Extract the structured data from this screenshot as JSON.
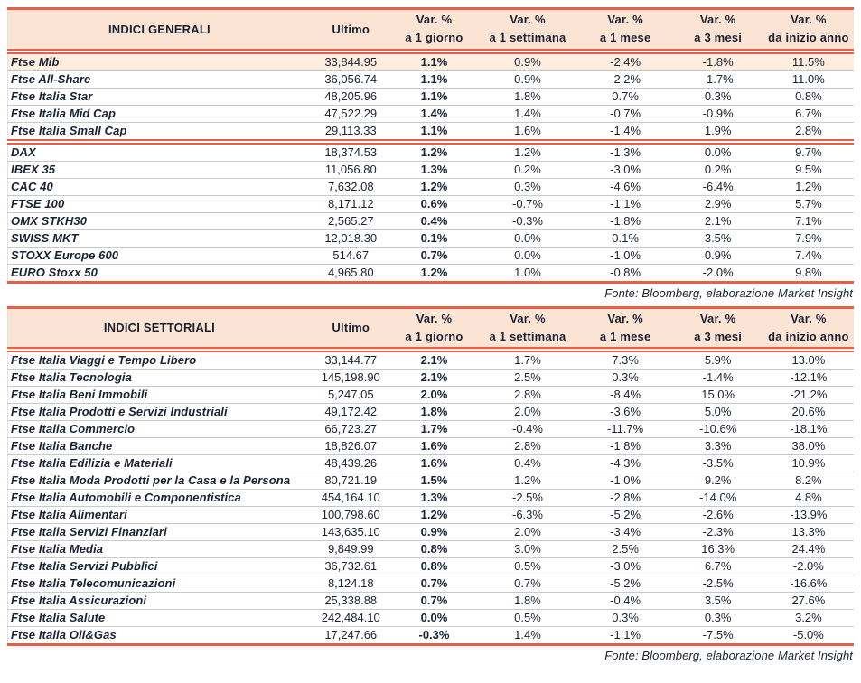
{
  "colors": {
    "accent_line": "#EA5E46",
    "header_bg": "#FBE4D3",
    "highlight_row_bg": "#FCEDE0",
    "text": "#1C2233",
    "row_separator": "#C9C9C9",
    "page_bg": "#FFFFFF"
  },
  "source_note": "Fonte: Bloomberg, elaborazione Market Insight",
  "tables": [
    {
      "title": "INDICI GENERALI",
      "ultimo_label": "Ultimo",
      "var_columns": [
        {
          "line1": "Var. %",
          "line2": "a 1 giorno"
        },
        {
          "line1": "Var. %",
          "line2": "a 1 settimana"
        },
        {
          "line1": "Var. %",
          "line2": "a 1 mese"
        },
        {
          "line1": "Var. %",
          "line2": "a 3 mesi"
        },
        {
          "line1": "Var. %",
          "line2": "da inizio anno"
        }
      ],
      "groups": [
        {
          "rows": [
            {
              "name": "Ftse Mib",
              "ultimo": "33,844.95",
              "d1": "1.1%",
              "w1": "0.9%",
              "m1": "-2.4%",
              "m3": "-1.8%",
              "ytd": "11.5%",
              "highlight": true
            },
            {
              "name": "Ftse All-Share",
              "ultimo": "36,056.74",
              "d1": "1.1%",
              "w1": "0.9%",
              "m1": "-2.2%",
              "m3": "-1.7%",
              "ytd": "11.0%"
            },
            {
              "name": "Ftse Italia Star",
              "ultimo": "48,205.96",
              "d1": "1.1%",
              "w1": "1.8%",
              "m1": "0.7%",
              "m3": "0.3%",
              "ytd": "0.8%"
            },
            {
              "name": "Ftse Italia Mid Cap",
              "ultimo": "47,522.29",
              "d1": "1.4%",
              "w1": "1.4%",
              "m1": "-0.7%",
              "m3": "-0.9%",
              "ytd": "6.7%"
            },
            {
              "name": "Ftse Italia Small Cap",
              "ultimo": "29,113.33",
              "d1": "1.1%",
              "w1": "1.6%",
              "m1": "-1.4%",
              "m3": "1.9%",
              "ytd": "2.8%"
            }
          ]
        },
        {
          "rows": [
            {
              "name": "DAX",
              "ultimo": "18,374.53",
              "d1": "1.2%",
              "w1": "1.2%",
              "m1": "-1.3%",
              "m3": "0.0%",
              "ytd": "9.7%"
            },
            {
              "name": "IBEX 35",
              "ultimo": "11,056.80",
              "d1": "1.3%",
              "w1": "0.2%",
              "m1": "-3.0%",
              "m3": "0.2%",
              "ytd": "9.5%"
            },
            {
              "name": "CAC 40",
              "ultimo": "7,632.08",
              "d1": "1.2%",
              "w1": "0.3%",
              "m1": "-4.6%",
              "m3": "-6.4%",
              "ytd": "1.2%"
            },
            {
              "name": "FTSE 100",
              "ultimo": "8,171.12",
              "d1": "0.6%",
              "w1": "-0.7%",
              "m1": "-1.1%",
              "m3": "2.9%",
              "ytd": "5.7%"
            },
            {
              "name": "OMX STKH30",
              "ultimo": "2,565.27",
              "d1": "0.4%",
              "w1": "-0.3%",
              "m1": "-1.8%",
              "m3": "2.1%",
              "ytd": "7.1%"
            },
            {
              "name": "SWISS MKT",
              "ultimo": "12,018.30",
              "d1": "0.1%",
              "w1": "0.0%",
              "m1": "0.1%",
              "m3": "3.5%",
              "ytd": "7.9%"
            },
            {
              "name": "STOXX Europe 600",
              "ultimo": "514.67",
              "d1": "0.7%",
              "w1": "0.0%",
              "m1": "-1.0%",
              "m3": "0.9%",
              "ytd": "7.4%"
            },
            {
              "name": "EURO Stoxx 50",
              "ultimo": "4,965.80",
              "d1": "1.2%",
              "w1": "1.0%",
              "m1": "-0.8%",
              "m3": "-2.0%",
              "ytd": "9.8%"
            }
          ]
        }
      ]
    },
    {
      "title": "INDICI SETTORIALI",
      "ultimo_label": "Ultimo",
      "var_columns": [
        {
          "line1": "Var. %",
          "line2": "a 1 giorno"
        },
        {
          "line1": "Var. %",
          "line2": "a 1 settimana"
        },
        {
          "line1": "Var. %",
          "line2": "a 1 mese"
        },
        {
          "line1": "Var. %",
          "line2": "a 3 mesi"
        },
        {
          "line1": "Var. %",
          "line2": "da inizio anno"
        }
      ],
      "groups": [
        {
          "rows": [
            {
              "name": "Ftse Italia Viaggi e Tempo Libero",
              "ultimo": "33,144.77",
              "d1": "2.1%",
              "w1": "1.7%",
              "m1": "7.3%",
              "m3": "5.9%",
              "ytd": "13.0%"
            },
            {
              "name": "Ftse Italia Tecnologia",
              "ultimo": "145,198.90",
              "d1": "2.1%",
              "w1": "2.5%",
              "m1": "0.3%",
              "m3": "-1.4%",
              "ytd": "-12.1%"
            },
            {
              "name": "Ftse Italia Beni Immobili",
              "ultimo": "5,247.05",
              "d1": "2.0%",
              "w1": "2.8%",
              "m1": "-8.4%",
              "m3": "15.0%",
              "ytd": "-21.2%"
            },
            {
              "name": "Ftse Italia Prodotti e Servizi Industriali",
              "ultimo": "49,172.42",
              "d1": "1.8%",
              "w1": "2.0%",
              "m1": "-3.6%",
              "m3": "5.0%",
              "ytd": "20.6%"
            },
            {
              "name": "Ftse Italia Commercio",
              "ultimo": "66,723.27",
              "d1": "1.7%",
              "w1": "-0.4%",
              "m1": "-11.7%",
              "m3": "-10.6%",
              "ytd": "-18.1%"
            },
            {
              "name": "Ftse Italia Banche",
              "ultimo": "18,826.07",
              "d1": "1.6%",
              "w1": "2.8%",
              "m1": "-1.8%",
              "m3": "3.3%",
              "ytd": "38.0%"
            },
            {
              "name": "Ftse Italia Edilizia e Materiali",
              "ultimo": "48,439.26",
              "d1": "1.6%",
              "w1": "0.4%",
              "m1": "-4.3%",
              "m3": "-3.5%",
              "ytd": "10.9%"
            },
            {
              "name": "Ftse Italia Moda Prodotti per la Casa e la Persona",
              "ultimo": "80,721.19",
              "d1": "1.5%",
              "w1": "1.2%",
              "m1": "-1.0%",
              "m3": "9.2%",
              "ytd": "8.2%"
            },
            {
              "name": "Ftse Italia Automobili e Componentistica",
              "ultimo": "454,164.10",
              "d1": "1.3%",
              "w1": "-2.5%",
              "m1": "-2.8%",
              "m3": "-14.0%",
              "ytd": "4.8%"
            },
            {
              "name": "Ftse Italia Alimentari",
              "ultimo": "100,798.60",
              "d1": "1.2%",
              "w1": "-6.3%",
              "m1": "-5.2%",
              "m3": "-2.6%",
              "ytd": "-13.9%"
            },
            {
              "name": "Ftse Italia Servizi Finanziari",
              "ultimo": "143,635.10",
              "d1": "0.9%",
              "w1": "2.0%",
              "m1": "-3.4%",
              "m3": "-2.3%",
              "ytd": "13.3%"
            },
            {
              "name": "Ftse Italia Media",
              "ultimo": "9,849.99",
              "d1": "0.8%",
              "w1": "3.0%",
              "m1": "2.5%",
              "m3": "16.3%",
              "ytd": "24.4%"
            },
            {
              "name": "Ftse Italia Servizi Pubblici",
              "ultimo": "36,732.61",
              "d1": "0.8%",
              "w1": "0.5%",
              "m1": "-3.0%",
              "m3": "6.7%",
              "ytd": "-2.0%"
            },
            {
              "name": "Ftse Italia Telecomunicazioni",
              "ultimo": "8,124.18",
              "d1": "0.7%",
              "w1": "0.7%",
              "m1": "-5.2%",
              "m3": "-2.5%",
              "ytd": "-16.6%"
            },
            {
              "name": "Ftse Italia Assicurazioni",
              "ultimo": "25,338.88",
              "d1": "0.7%",
              "w1": "1.8%",
              "m1": "-0.4%",
              "m3": "3.5%",
              "ytd": "27.6%"
            },
            {
              "name": "Ftse Italia Salute",
              "ultimo": "242,484.10",
              "d1": "0.0%",
              "w1": "0.5%",
              "m1": "0.3%",
              "m3": "0.3%",
              "ytd": "3.2%"
            },
            {
              "name": "Ftse Italia Oil&Gas",
              "ultimo": "17,247.66",
              "d1": "-0.3%",
              "w1": "1.4%",
              "m1": "-1.1%",
              "m3": "-7.5%",
              "ytd": "-5.0%"
            }
          ]
        }
      ]
    }
  ]
}
